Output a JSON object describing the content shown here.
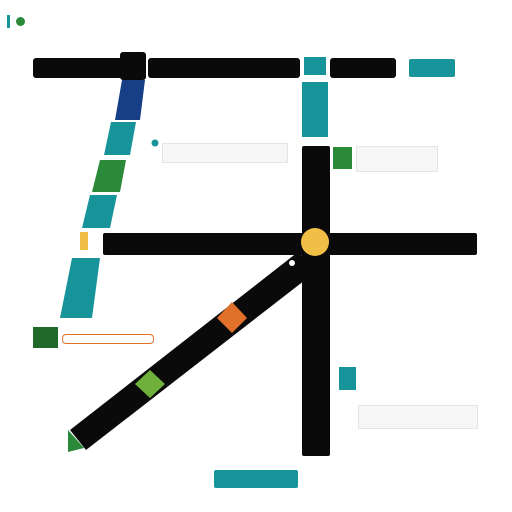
{
  "header": {
    "logo_icon": "green-dot-logo",
    "title": "",
    "subtitle": ""
  },
  "toolbar": {
    "top_right_button": "",
    "bottom_button": ""
  },
  "panels": {
    "info_top_left": {
      "line1": "",
      "line2": "",
      "line3": ""
    },
    "info_top_right": {
      "line1": "",
      "line2": "",
      "line3": ""
    },
    "info_left_mid": {
      "line1": "",
      "line2": ""
    },
    "info_bottom_right": {
      "line1": "",
      "line2": ""
    }
  },
  "colors": {
    "road": "#0a0a0a",
    "teal": "#17939a",
    "navy": "#163f86",
    "green": "#2a8a3a",
    "dark_green": "#1f6a2a",
    "orange": "#e0702a",
    "yellow": "#f2bf46"
  }
}
